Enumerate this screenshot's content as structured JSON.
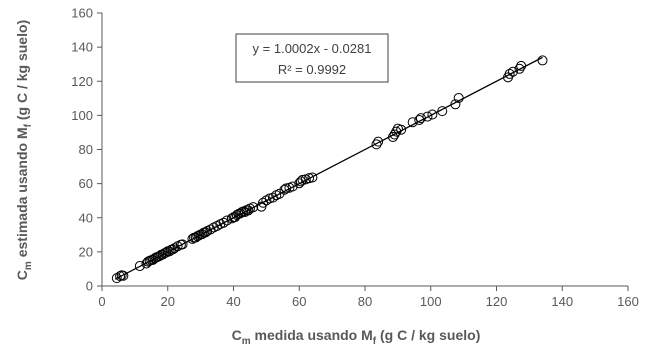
{
  "chart_data": {
    "type": "scatter",
    "x_label": {
      "pre": "C",
      "sub1": "m",
      "mid": " medida usando M",
      "sub2": "f",
      "post": " (g C / kg suelo)"
    },
    "y_label": {
      "pre": "C",
      "sub1": "m",
      "mid": " estimada usando M",
      "sub2": "f",
      "post": " (g C / kg suelo)"
    },
    "xlim": [
      0,
      160
    ],
    "ylim": [
      0,
      160
    ],
    "x_ticks": [
      0,
      20,
      40,
      60,
      80,
      100,
      120,
      140,
      160
    ],
    "y_ticks": [
      0,
      20,
      40,
      60,
      80,
      100,
      120,
      140,
      160
    ],
    "grid": false,
    "marker": "open-circle",
    "colors": {
      "marker": "#000000",
      "axis": "#595959",
      "trendline": "#000000"
    },
    "trendline": {
      "slope": 1.0002,
      "intercept": -0.0281,
      "x_range": [
        4,
        134
      ],
      "equation": "y = 1.0002x - 0.0281",
      "r2_label": "R² = 0.9992"
    },
    "points": [
      [
        4.5,
        4.6
      ],
      [
        5.5,
        5.8
      ],
      [
        6.0,
        6.3
      ],
      [
        6.5,
        6.0
      ],
      [
        11.5,
        11.7
      ],
      [
        13.5,
        13.2
      ],
      [
        14.0,
        14.3
      ],
      [
        14.5,
        14.8
      ],
      [
        15.0,
        15.2
      ],
      [
        15.5,
        15.3
      ],
      [
        16.0,
        16.2
      ],
      [
        16.5,
        16.8
      ],
      [
        17.0,
        17.1
      ],
      [
        17.5,
        17.5
      ],
      [
        18.0,
        18.3
      ],
      [
        18.5,
        18.4
      ],
      [
        19.0,
        19.2
      ],
      [
        19.5,
        19.6
      ],
      [
        20.0,
        20.4
      ],
      [
        20.5,
        20.3
      ],
      [
        21.0,
        21.2
      ],
      [
        21.5,
        21.4
      ],
      [
        22.0,
        22.1
      ],
      [
        23.0,
        23.3
      ],
      [
        24.0,
        24.2
      ],
      [
        24.5,
        24.4
      ],
      [
        27.5,
        27.6
      ],
      [
        28.0,
        28.3
      ],
      [
        28.5,
        28.4
      ],
      [
        29.0,
        29.2
      ],
      [
        29.5,
        29.6
      ],
      [
        30.0,
        30.2
      ],
      [
        30.5,
        30.4
      ],
      [
        31.0,
        31.3
      ],
      [
        31.5,
        31.4
      ],
      [
        32.0,
        32.2
      ],
      [
        33.0,
        33.1
      ],
      [
        34.0,
        34.3
      ],
      [
        35.0,
        35.2
      ],
      [
        36.0,
        36.3
      ],
      [
        37.0,
        37.1
      ],
      [
        38.0,
        38.4
      ],
      [
        39.5,
        39.6
      ],
      [
        40.0,
        40.3
      ],
      [
        40.5,
        40.4
      ],
      [
        41.0,
        41.6
      ],
      [
        41.5,
        42.2
      ],
      [
        42.0,
        42.5
      ],
      [
        42.5,
        43.3
      ],
      [
        43.0,
        43.7
      ],
      [
        43.5,
        43.4
      ],
      [
        44.0,
        44.5
      ],
      [
        44.5,
        44.3
      ],
      [
        45.0,
        45.4
      ],
      [
        46.0,
        46.2
      ],
      [
        48.5,
        46.5
      ],
      [
        49.0,
        48.8
      ],
      [
        50.0,
        50.2
      ],
      [
        51.0,
        51.3
      ],
      [
        52.0,
        51.8
      ],
      [
        53.0,
        53.2
      ],
      [
        54.0,
        54.1
      ],
      [
        55.5,
        56.4
      ],
      [
        56.0,
        57.2
      ],
      [
        57.0,
        57.6
      ],
      [
        58.0,
        58.3
      ],
      [
        60.0,
        60.2
      ],
      [
        60.5,
        61.3
      ],
      [
        61.0,
        62.2
      ],
      [
        62.0,
        62.5
      ],
      [
        63.0,
        63.2
      ],
      [
        64.0,
        63.6
      ],
      [
        83.5,
        83.0
      ],
      [
        84.0,
        84.6
      ],
      [
        88.5,
        87.3
      ],
      [
        89.0,
        88.8
      ],
      [
        89.5,
        90.5
      ],
      [
        90.0,
        92.2
      ],
      [
        91.0,
        91.6
      ],
      [
        94.5,
        96.0
      ],
      [
        96.5,
        97.3
      ],
      [
        97.0,
        98.4
      ],
      [
        99.0,
        99.3
      ],
      [
        100.5,
        100.5
      ],
      [
        103.5,
        102.5
      ],
      [
        107.5,
        106.5
      ],
      [
        108.5,
        110.2
      ],
      [
        123.5,
        122.3
      ],
      [
        124.0,
        124.3
      ],
      [
        125.0,
        125.6
      ],
      [
        127.0,
        127.3
      ],
      [
        127.5,
        129.0
      ],
      [
        134.0,
        132.2
      ]
    ]
  }
}
